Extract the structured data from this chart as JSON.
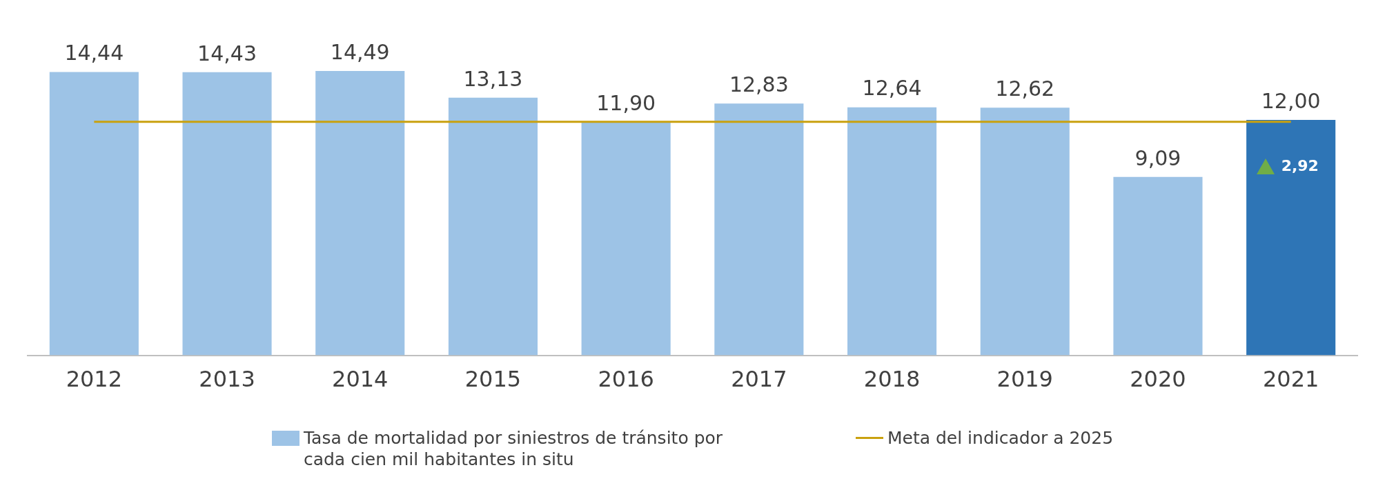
{
  "chart_data": {
    "type": "bar",
    "categories": [
      "2012",
      "2013",
      "2014",
      "2015",
      "2016",
      "2017",
      "2018",
      "2019",
      "2020",
      "2021"
    ],
    "series": [
      {
        "name": "Tasa de mortalidad por siniestros de tránsito por cada cien mil habitantes in situ",
        "color": "#9dc3e6",
        "colors": [
          "#9dc3e6",
          "#9dc3e6",
          "#9dc3e6",
          "#9dc3e6",
          "#9dc3e6",
          "#9dc3e6",
          "#9dc3e6",
          "#9dc3e6",
          "#9dc3e6",
          "#2e75b6"
        ],
        "values": [
          14.44,
          14.43,
          14.49,
          13.13,
          11.9,
          12.83,
          12.64,
          12.62,
          9.09,
          12.0
        ],
        "value_labels": [
          "14,44",
          "14,43",
          "14,49",
          "13,13",
          "11,90",
          "12,83",
          "12,64",
          "12,62",
          "9,09",
          "12,00"
        ]
      },
      {
        "type": "line",
        "name": "Meta del indicador a 2025",
        "color": "#c9a10e",
        "values": [
          11.9,
          11.9,
          11.9,
          11.9,
          11.9,
          11.9,
          11.9,
          11.9,
          11.9,
          11.9
        ]
      }
    ],
    "annotations": [
      "2,92"
    ],
    "legend": "bottom",
    "grid": false,
    "marker": "none"
  }
}
